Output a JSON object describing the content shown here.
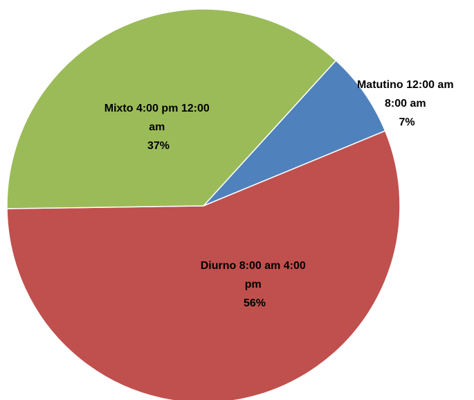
{
  "chart_data": {
    "type": "pie",
    "slices": [
      {
        "label": "Matutino 12:00 am 8:00 am",
        "value": 7,
        "percent_label": "7%",
        "color": "#4F81BD"
      },
      {
        "label": "Diurno 8:00 am 4:00 pm",
        "value": 56,
        "percent_label": "56%",
        "color": "#C0504D"
      },
      {
        "label": "Mixto 4:00 pm 12:00 am",
        "value": 37,
        "percent_label": "37%",
        "color": "#9BBB59"
      }
    ],
    "label_lines": [
      [
        "Matutino 12:00 am",
        "8:00 am",
        "7%"
      ],
      [
        "Diurno 8:00 am 4:00",
        "pm",
        "56%"
      ],
      [
        "Mixto 4:00 pm 12:00",
        "am",
        "37%"
      ]
    ],
    "legend": "none"
  }
}
